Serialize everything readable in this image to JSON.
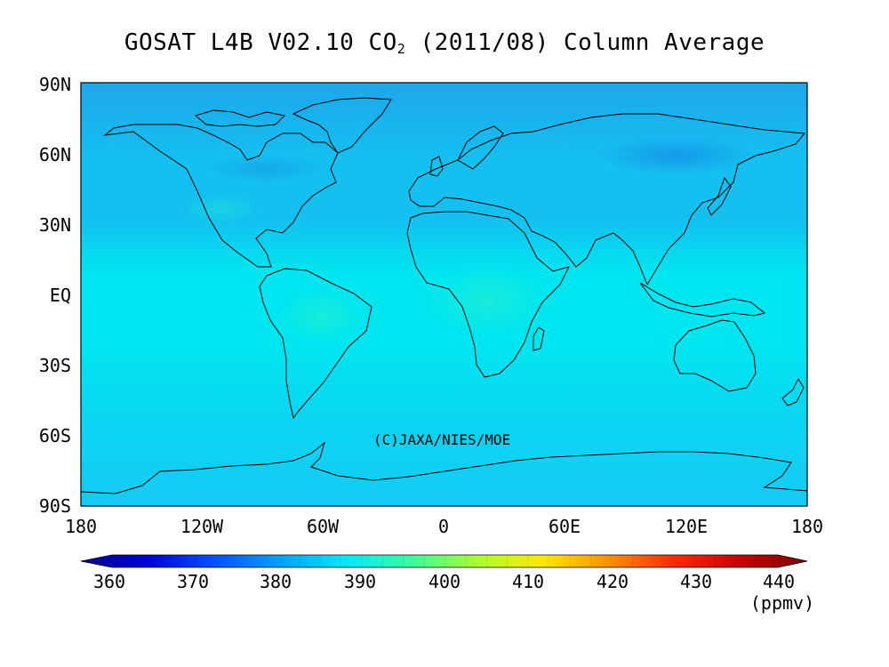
{
  "title": {
    "prefix": "GOSAT L4B V02.10 CO",
    "subscript": "2",
    "suffix": " (2011/08) Column Average"
  },
  "map": {
    "lat_labels": [
      "90N",
      "60N",
      "30N",
      "EQ",
      "30S",
      "60S",
      "90S"
    ],
    "lon_labels": [
      "180",
      "120W",
      "60W",
      "0",
      "60E",
      "120E",
      "180"
    ],
    "credit": "(C)JAXA/NIES/MOE",
    "colors": {
      "north_polar": "#1ea6ec",
      "north_mid": "#14c0f0",
      "tropics": "#00e6f0",
      "south_mid": "#0ad6f2",
      "south_polar": "#16caf4",
      "tropical_land_high": "#1cecd8",
      "coastline": "#000000",
      "frame": "#000000"
    }
  },
  "colorbar": {
    "labels": [
      "360",
      "370",
      "380",
      "390",
      "400",
      "410",
      "420",
      "430",
      "440"
    ],
    "unit": "(ppmv)",
    "min": 360,
    "max": 440,
    "colors": [
      "#00008c",
      "#0000d8",
      "#0050ff",
      "#00a0ff",
      "#00e8ff",
      "#38ff9c",
      "#a8ff30",
      "#ffe800",
      "#ff9000",
      "#ff2800",
      "#c80000",
      "#7c0000"
    ]
  }
}
